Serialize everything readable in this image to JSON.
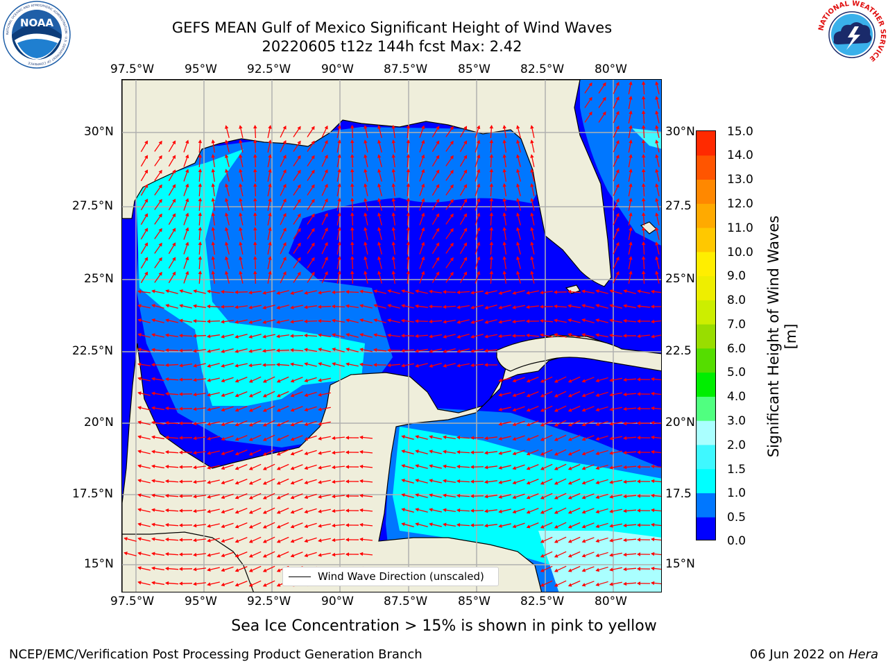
{
  "title": {
    "line1": "GEFS MEAN Gulf of Mexico Significant Height of Wind Waves",
    "line2": "20220605 t12z 144h fcst   Max: 2.42"
  },
  "axes": {
    "lon_labels": [
      "97.5°W",
      "95°W",
      "92.5°W",
      "90°W",
      "87.5°W",
      "85°W",
      "82.5°W",
      "80°W"
    ],
    "lat_labels_left": [
      "30°N",
      "27.5°N",
      "25°N",
      "22.5°N",
      "20°N",
      "17.5°N",
      "15°N"
    ],
    "lat_labels_right": [
      "30°N",
      "27.5",
      "25°N",
      "22.5",
      "20°N",
      "17.5",
      "15°N"
    ]
  },
  "colorbar": {
    "title": "Significant Height of Wind Waves [m]",
    "labels": [
      "15.0",
      "14.0",
      "13.0",
      "12.0",
      "11.0",
      "10.0",
      "9.0",
      "8.0",
      "7.0",
      "6.0",
      "5.0",
      "4.0",
      "3.0",
      "2.0",
      "1.5",
      "1.0",
      "0.5",
      "0.0"
    ],
    "colors_bottom_to_top": [
      "#0000ff",
      "#0077ff",
      "#00ffff",
      "#3ff8ff",
      "#aaffff",
      "#50ff80",
      "#00ee00",
      "#55dd00",
      "#99dd00",
      "#ccee00",
      "#eeee00",
      "#ffee00",
      "#ffc800",
      "#ffaa00",
      "#ff8800",
      "#ff5500",
      "#ff2a00",
      "#ff0000"
    ]
  },
  "legend": {
    "label": "Wind Wave Direction (unscaled)"
  },
  "footer": {
    "note": "Sea Ice Concentration > 15% is shown in pink to yellow",
    "left": "NCEP/EMC/Verification Post Processing Product Generation Branch",
    "date": "06 Jun 2022 on ",
    "host": "Hera"
  },
  "logos": {
    "noaa": {
      "text": "NOAA",
      "ring_text": "NATIONAL OCEANIC AND ATMOSPHERIC ADMINISTRATION · U.S. DEPARTMENT OF COMMERCE"
    },
    "nws": {
      "ring_text": "NATIONAL WEATHER SERVICE"
    }
  },
  "colors": {
    "land": "#efeedb",
    "ocean_low": "#0000ff",
    "ocean_mid": "#0077ff",
    "ocean_high": "#00ffff",
    "arrow": "#ff0000",
    "grid": "#b0b0b0"
  }
}
